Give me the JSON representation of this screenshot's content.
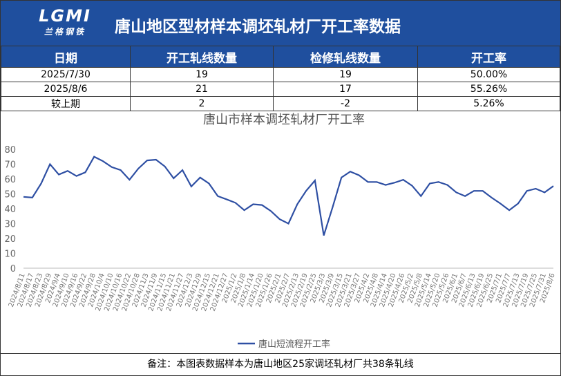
{
  "header": {
    "logo": "LGMI",
    "logo_sub": "兰格钢铁",
    "title": "唐山地区型材样本调坯轧材厂开工率数据"
  },
  "table": {
    "columns": [
      "日期",
      "开工轧线数量",
      "检修轧线数量",
      "开工率"
    ],
    "rows": [
      [
        "2025/7/30",
        "19",
        "19",
        "50.00%"
      ],
      [
        "2025/8/6",
        "21",
        "17",
        "55.26%"
      ],
      [
        "较上期",
        "2",
        "-2",
        "5.26%"
      ]
    ]
  },
  "chart_data": {
    "type": "line",
    "title": "唐山市样本调坯轧材厂开工率",
    "categories": [
      "2024/8/11",
      "2024/8/17",
      "2024/8/23",
      "2024/8/29",
      "2024/9/4",
      "2024/9/10",
      "2024/9/16",
      "2024/9/22",
      "2024/9/28",
      "2024/10/4",
      "2024/10/10",
      "2024/10/16",
      "2024/10/22",
      "2024/10/28",
      "2024/11/3",
      "2024/11/9",
      "2024/11/15",
      "2024/11/21",
      "2024/11/27",
      "2024/12/3",
      "2024/12/9",
      "2024/12/15",
      "2024/12/21",
      "2024/12/27",
      "2025/1/2",
      "2025/1/8",
      "2025/1/14",
      "2025/1/20",
      "2025/1/26",
      "2025/2/1",
      "2025/2/7",
      "2025/2/13",
      "2025/2/19",
      "2025/2/25",
      "2025/3/3",
      "2025/3/9",
      "2025/3/15",
      "2025/3/21",
      "2025/3/27",
      "2025/4/2",
      "2025/4/8",
      "2025/4/14",
      "2025/4/20",
      "2025/4/26",
      "2025/5/2",
      "2025/5/8",
      "2025/5/14",
      "2025/5/20",
      "2025/5/26",
      "2025/6/1",
      "2025/6/7",
      "2025/6/13",
      "2025/6/19",
      "2025/6/25",
      "2025/7/1",
      "2025/7/7",
      "2025/7/13",
      "2025/7/19",
      "2025/7/25",
      "2025/7/31",
      "2025/8/6"
    ],
    "series": [
      {
        "name": "唐山短流程开工率",
        "color": "#2e4fa3",
        "values": [
          48,
          47.5,
          57,
          70,
          63,
          65.5,
          62,
          64.5,
          75,
          72,
          68,
          66,
          59.5,
          67,
          72.5,
          73,
          68.5,
          60.5,
          66,
          55,
          61,
          57,
          48.5,
          46.3,
          44,
          39,
          43,
          42.5,
          38.5,
          33,
          30,
          43,
          52,
          59,
          22,
          41,
          61,
          65,
          62.5,
          58,
          58,
          56,
          57.5,
          59.5,
          55.5,
          48.5,
          57,
          58,
          56,
          51,
          48.5,
          52,
          52,
          47.5,
          43.5,
          39,
          43.5,
          52,
          53.5,
          51,
          55.26
        ]
      }
    ],
    "ylim": [
      0,
      80
    ],
    "yticks": [
      0,
      10,
      20,
      30,
      40,
      50,
      60,
      70,
      80
    ],
    "grid": false,
    "legend": "bottom"
  },
  "footer": {
    "note": "备注：本图表数据样本为唐山地区25家调坯轧材厂共38条轧线"
  }
}
